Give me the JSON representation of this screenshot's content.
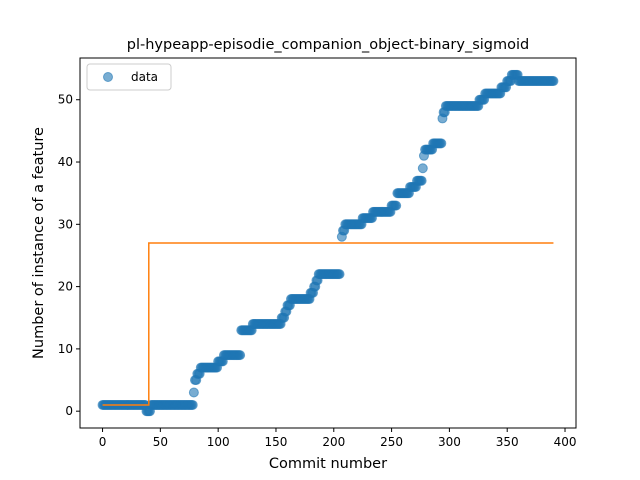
{
  "chart_data": {
    "type": "scatter",
    "title": "pl-hypeapp-episodie_companion_object-binary_sigmoid",
    "xlabel": "Commit number",
    "ylabel": "Number of instance of a feature",
    "xlim": [
      -19.5,
      409.5
    ],
    "ylim": [
      -2.7,
      56.7
    ],
    "xticks": [
      0,
      50,
      100,
      150,
      200,
      250,
      300,
      350,
      400
    ],
    "yticks": [
      0,
      10,
      20,
      30,
      40,
      50
    ],
    "grid": false,
    "legend": {
      "placement": "top-left",
      "entries": [
        "data"
      ]
    },
    "colors": {
      "data": "#1f77b4",
      "fit": "#ff7f0e"
    },
    "series": [
      {
        "name": "data",
        "kind": "scatter",
        "segments": [
          [
            0,
            37,
            1
          ],
          [
            38,
            41,
            0
          ],
          [
            42,
            78,
            1
          ],
          [
            79,
            79,
            3
          ],
          [
            80,
            81,
            5
          ],
          [
            82,
            84,
            6
          ],
          [
            85,
            99,
            7
          ],
          [
            100,
            104,
            8
          ],
          [
            105,
            119,
            9
          ],
          [
            120,
            127,
            13
          ],
          [
            128,
            129,
            13
          ],
          [
            130,
            154,
            14
          ],
          [
            155,
            157,
            15
          ],
          [
            158,
            159,
            16
          ],
          [
            160,
            162,
            17
          ],
          [
            163,
            179,
            18
          ],
          [
            180,
            182,
            19
          ],
          [
            183,
            184,
            20
          ],
          [
            185,
            186,
            21
          ],
          [
            187,
            205,
            22
          ],
          [
            207,
            207,
            28
          ],
          [
            208,
            209,
            29
          ],
          [
            210,
            224,
            30
          ],
          [
            225,
            233,
            31
          ],
          [
            234,
            249,
            32
          ],
          [
            250,
            254,
            33
          ],
          [
            255,
            265,
            35
          ],
          [
            266,
            271,
            36
          ],
          [
            272,
            276,
            37
          ],
          [
            277,
            277,
            39
          ],
          [
            278,
            278,
            41
          ],
          [
            279,
            285,
            42
          ],
          [
            286,
            293,
            43
          ],
          [
            294,
            294,
            47
          ],
          [
            295,
            296,
            48
          ],
          [
            297,
            325,
            49
          ],
          [
            326,
            330,
            50
          ],
          [
            331,
            344,
            51
          ],
          [
            345,
            349,
            52
          ],
          [
            350,
            353,
            53
          ],
          [
            354,
            359,
            54
          ],
          [
            360,
            390,
            53
          ]
        ]
      },
      {
        "name": "",
        "kind": "line",
        "x": [
          0,
          40,
          40,
          390
        ],
        "y": [
          1,
          1,
          27,
          27
        ]
      }
    ]
  }
}
